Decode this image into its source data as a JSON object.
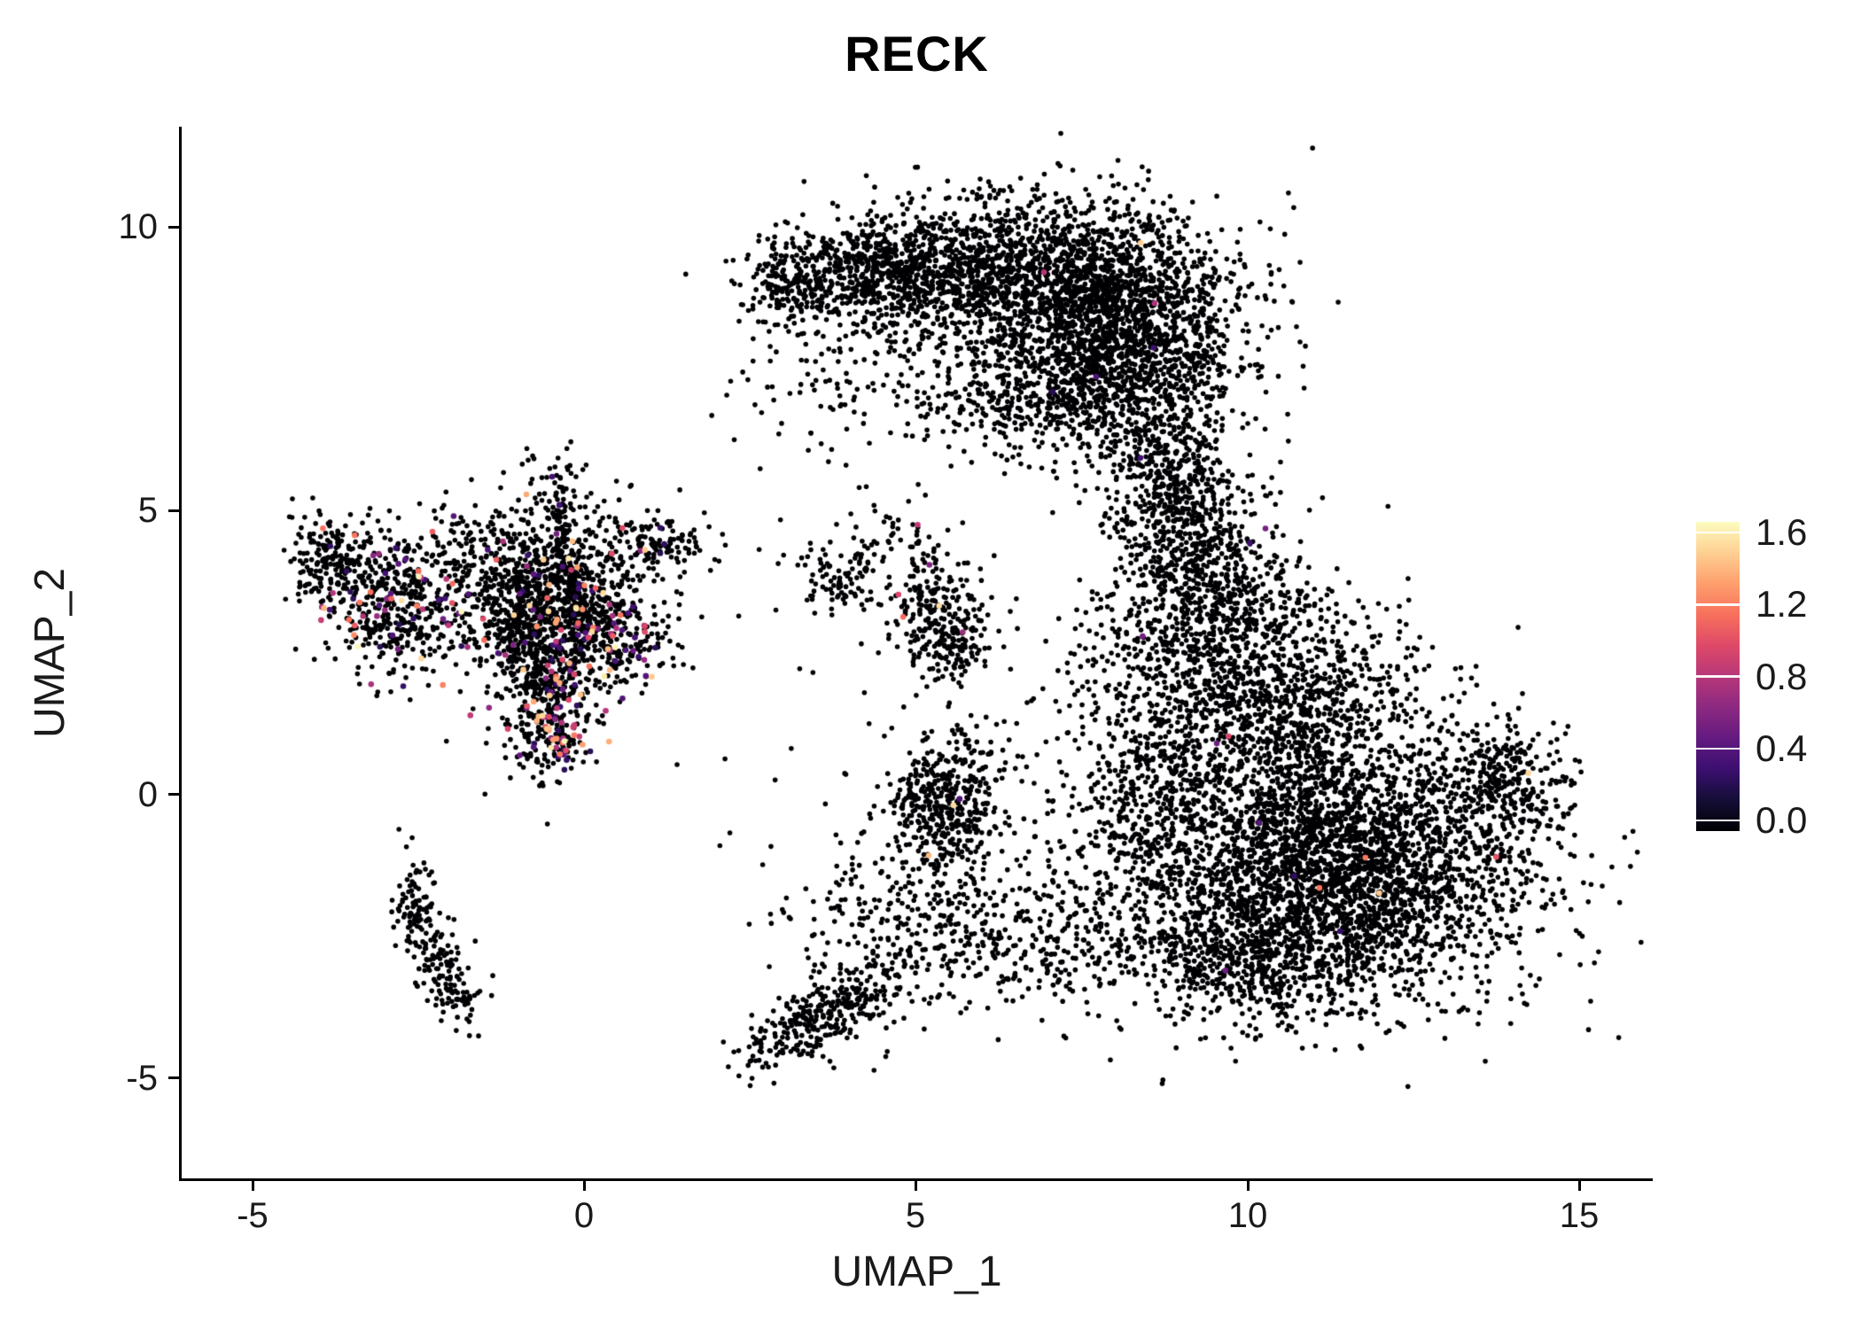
{
  "title": "RECK",
  "axes": {
    "x_label": "UMAP_1",
    "y_label": "UMAP_2",
    "x_tick_labels": [
      "-5",
      "0",
      "5",
      "10",
      "15"
    ],
    "y_tick_labels": [
      "10",
      "5",
      "0",
      "-5"
    ]
  },
  "colorbar": {
    "labels": [
      "1.6",
      "1.2",
      "0.8",
      "0.4",
      "0.0"
    ],
    "vmin": 0.0,
    "vmax": 1.6
  },
  "chart_data": {
    "type": "scatter",
    "title": "RECK",
    "xlabel": "UMAP_1",
    "ylabel": "UMAP_2",
    "xlim": [
      -6.05,
      16.08
    ],
    "ylim": [
      -6.77,
      11.77
    ],
    "x_ticks": [
      -5,
      0,
      5,
      10,
      15
    ],
    "y_ticks": [
      10,
      5,
      0,
      -5
    ],
    "grid": false,
    "legend_position": "right",
    "color_scale": {
      "vmin": 0.0,
      "vmax": 1.6,
      "ticks": [
        0.0,
        0.4,
        0.8,
        1.2,
        1.6
      ]
    },
    "colormap": {
      "name": "magma",
      "stops": [
        [
          0.0,
          "#000004"
        ],
        [
          0.1,
          "#140e36"
        ],
        [
          0.2,
          "#3b0f70"
        ],
        [
          0.3,
          "#641a80"
        ],
        [
          0.4,
          "#8c2981"
        ],
        [
          0.5,
          "#b73779"
        ],
        [
          0.6,
          "#de4968"
        ],
        [
          0.7,
          "#f7705c"
        ],
        [
          0.8,
          "#fe9f6d"
        ],
        [
          0.9,
          "#fecf92"
        ],
        [
          1.0,
          "#fcfdbf"
        ]
      ]
    },
    "seed": 42,
    "point_radius": 2.8,
    "expressing_point_radius": 3.3,
    "clusters": [
      {
        "name": "top-arc-left",
        "cx": 4.2,
        "cy": 9.15,
        "sx": 0.85,
        "sy": 0.45,
        "n": 650,
        "expr_frac": 0.0015
      },
      {
        "name": "top-arc-mid",
        "cx": 6.3,
        "cy": 9.35,
        "sx": 1.15,
        "sy": 0.6,
        "n": 1100,
        "expr_frac": 0.0015
      },
      {
        "name": "top-arc-right",
        "cx": 8.1,
        "cy": 8.5,
        "sx": 0.95,
        "sy": 0.85,
        "n": 1500,
        "expr_frac": 0.0015
      },
      {
        "name": "top-arc-lower",
        "cx": 7.4,
        "cy": 7.2,
        "sx": 1.1,
        "sy": 0.65,
        "n": 800,
        "expr_frac": 0.0015
      },
      {
        "name": "top-arm-down",
        "cx": 8.8,
        "cy": 6.1,
        "sx": 0.5,
        "sy": 0.75,
        "n": 300,
        "expr_frac": 0.0015
      },
      {
        "name": "top-sparse-center",
        "cx": 5.4,
        "cy": 8.0,
        "sx": 1.1,
        "sy": 0.75,
        "n": 170,
        "expr_frac": 0
      },
      {
        "name": "top-tip",
        "cx": 3.05,
        "cy": 8.85,
        "sx": 0.3,
        "sy": 0.3,
        "n": 80,
        "expr_frac": 0.01
      },
      {
        "name": "top-below-sparse",
        "cx": 3.5,
        "cy": 6.9,
        "sx": 0.7,
        "sy": 0.7,
        "n": 60,
        "expr_frac": 0
      },
      {
        "name": "right-core",
        "cx": 11.3,
        "cy": -1.3,
        "sx": 1.5,
        "sy": 1.15,
        "n": 3400,
        "expr_frac": 0.002
      },
      {
        "name": "right-upper",
        "cx": 10.4,
        "cy": 1.6,
        "sx": 1.1,
        "sy": 1.0,
        "n": 1100,
        "expr_frac": 0.002
      },
      {
        "name": "right-neck",
        "cx": 9.4,
        "cy": 3.6,
        "sx": 0.7,
        "sy": 0.9,
        "n": 650,
        "expr_frac": 0.003
      },
      {
        "name": "right-top",
        "cx": 9.0,
        "cy": 5.0,
        "sx": 0.5,
        "sy": 0.55,
        "n": 220,
        "expr_frac": 0
      },
      {
        "name": "right-east-lobe",
        "cx": 13.9,
        "cy": 0.3,
        "sx": 0.5,
        "sy": 0.55,
        "n": 260,
        "expr_frac": 0
      },
      {
        "name": "right-south-tail",
        "cx": 9.9,
        "cy": -2.9,
        "sx": 0.85,
        "sy": 0.55,
        "n": 450,
        "expr_frac": 0.003
      },
      {
        "name": "right-west-edge",
        "cx": 8.6,
        "cy": -0.4,
        "sx": 0.6,
        "sy": 1.1,
        "n": 320,
        "expr_frac": 0
      },
      {
        "name": "right-gap-sparse",
        "cx": 8.4,
        "cy": 2.4,
        "sx": 0.8,
        "sy": 0.8,
        "n": 140,
        "expr_frac": 0
      },
      {
        "name": "mid-south-blob",
        "cx": 5.5,
        "cy": -0.15,
        "sx": 0.45,
        "sy": 0.6,
        "n": 420,
        "expr_frac": 0.008
      },
      {
        "name": "south-strip",
        "cx": 3.55,
        "cy": -3.95,
        "sx": 0.6,
        "sy": 0.26,
        "rot": 32,
        "n": 300,
        "expr_frac": 0.004
      },
      {
        "name": "south-band-1",
        "cx": 4.6,
        "cy": -2.3,
        "sx": 0.75,
        "sy": 0.75,
        "n": 220,
        "expr_frac": 0
      },
      {
        "name": "south-band-2",
        "cx": 6.6,
        "cy": -2.5,
        "sx": 1.0,
        "sy": 0.6,
        "n": 300,
        "expr_frac": 0
      },
      {
        "name": "center-small-1",
        "cx": 3.85,
        "cy": 3.8,
        "sx": 0.35,
        "sy": 0.3,
        "n": 90,
        "expr_frac": 0.02
      },
      {
        "name": "center-small-2",
        "cx": 5.2,
        "cy": 3.4,
        "sx": 0.3,
        "sy": 0.6,
        "n": 170,
        "expr_frac": 0.02
      },
      {
        "name": "center-small-3",
        "cx": 5.6,
        "cy": 2.7,
        "sx": 0.3,
        "sy": 0.4,
        "n": 130,
        "expr_frac": 0.01
      },
      {
        "name": "center-small-4",
        "cx": 4.6,
        "cy": 4.6,
        "sx": 0.3,
        "sy": 0.2,
        "n": 25,
        "expr_frac": 0
      },
      {
        "name": "left-far-blob",
        "cx": -3.85,
        "cy": 4.1,
        "sx": 0.3,
        "sy": 0.4,
        "n": 180,
        "expr_frac": 0.1
      },
      {
        "name": "left-blob-2",
        "cx": -2.9,
        "cy": 3.4,
        "sx": 0.5,
        "sy": 0.6,
        "n": 430,
        "expr_frac": 0.09
      },
      {
        "name": "left-main",
        "cx": -0.6,
        "cy": 3.4,
        "sx": 0.8,
        "sy": 0.75,
        "n": 1000,
        "expr_frac": 0.05
      },
      {
        "name": "left-streak-1",
        "cx": -0.35,
        "cy": 4.7,
        "sx": 0.07,
        "sy": 0.5,
        "n": 60,
        "expr_frac": 0.03
      },
      {
        "name": "left-streak-2",
        "cx": -0.75,
        "cy": 2.6,
        "sx": 0.08,
        "sy": 0.6,
        "n": 70,
        "expr_frac": 0.15
      },
      {
        "name": "left-streak-3",
        "cx": -0.15,
        "cy": 3.5,
        "sx": 0.07,
        "sy": 0.6,
        "n": 60,
        "expr_frac": 0.05
      },
      {
        "name": "left-streak-4",
        "cx": -1.05,
        "cy": 3.0,
        "sx": 0.08,
        "sy": 0.5,
        "n": 50,
        "expr_frac": 0.08
      },
      {
        "name": "left-lower-streaks",
        "cx": -0.55,
        "cy": 1.7,
        "sx": 0.35,
        "sy": 0.75,
        "n": 320,
        "expr_frac": 0.2
      },
      {
        "name": "left-dense-knot",
        "cx": -0.45,
        "cy": 0.95,
        "sx": 0.18,
        "sy": 0.22,
        "n": 70,
        "expr_frac": 0.3
      },
      {
        "name": "left-east-blob",
        "cx": 0.35,
        "cy": 2.8,
        "sx": 0.45,
        "sy": 0.4,
        "n": 240,
        "expr_frac": 0.16
      },
      {
        "name": "left-arm-east",
        "cx": 1.15,
        "cy": 4.45,
        "sx": 0.4,
        "sy": 0.22,
        "n": 110,
        "expr_frac": 0.08
      },
      {
        "name": "left-top-sparse",
        "cx": -0.3,
        "cy": 5.3,
        "sx": 0.5,
        "sy": 0.45,
        "n": 70,
        "expr_frac": 0.03
      },
      {
        "name": "left-mid-sparse",
        "cx": -1.8,
        "cy": 4.5,
        "sx": 0.45,
        "sy": 0.3,
        "n": 60,
        "expr_frac": 0.05
      },
      {
        "name": "sw-streak-upper",
        "cx": -2.55,
        "cy": -1.9,
        "sx": 0.15,
        "sy": 0.45,
        "n": 80,
        "expr_frac": 0
      },
      {
        "name": "sw-streak-lower",
        "cx": -2.15,
        "cy": -3.0,
        "sx": 0.22,
        "sy": 0.5,
        "rot": 20,
        "n": 110,
        "expr_frac": 0
      },
      {
        "name": "sw-streak-tip",
        "cx": -1.85,
        "cy": -3.65,
        "sx": 0.2,
        "sy": 0.15,
        "n": 30,
        "expr_frac": 0
      },
      {
        "name": "noise-center",
        "cx": 6.5,
        "cy": 2.0,
        "sx": 2.3,
        "sy": 2.3,
        "n": 110,
        "expr_frac": 0.005
      },
      {
        "name": "noise-south",
        "cx": 7.0,
        "cy": -1.0,
        "sx": 1.5,
        "sy": 1.5,
        "n": 80,
        "expr_frac": 0
      }
    ]
  }
}
